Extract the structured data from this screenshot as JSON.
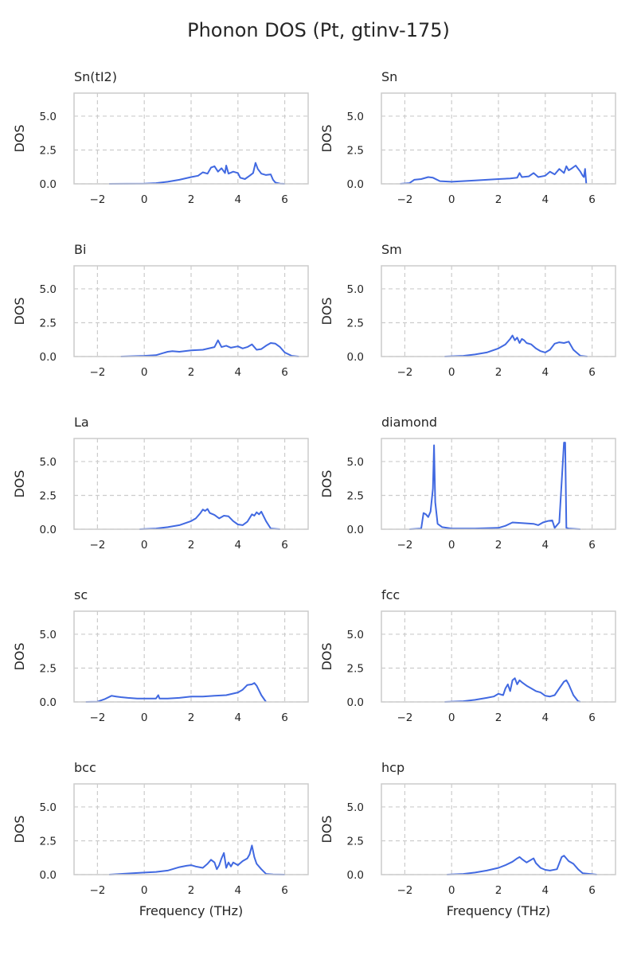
{
  "title": "Phonon DOS (Pt, gtinv-175)",
  "style": {
    "line_color": "#4169e1",
    "grid_color": "#cccccc",
    "spine_color": "#cccccc",
    "text_color": "#262626"
  },
  "chart_data": [
    {
      "type": "line",
      "title": "Sn(tI2)",
      "xlabel": "",
      "ylabel": "DOS",
      "xlim": [
        -3,
        7
      ],
      "ylim": [
        0,
        6.7
      ],
      "xticks": [
        -2,
        0,
        2,
        4,
        6
      ],
      "yticks": [
        0.0,
        2.5,
        5.0
      ],
      "xtick_labels": [
        "−2",
        "0",
        "2",
        "4",
        "6"
      ],
      "ytick_labels": [
        "0.0",
        "2.5",
        "5.0"
      ],
      "grid": "dashed",
      "x": [
        -1.5,
        0,
        0.5,
        1,
        1.5,
        2,
        2.3,
        2.5,
        2.7,
        2.85,
        3.0,
        3.15,
        3.3,
        3.45,
        3.5,
        3.6,
        3.8,
        4.0,
        4.1,
        4.3,
        4.5,
        4.65,
        4.75,
        4.85,
        5.0,
        5.2,
        5.4,
        5.5,
        5.6,
        5.8,
        6.0
      ],
      "y": [
        0,
        0.02,
        0.05,
        0.15,
        0.3,
        0.5,
        0.6,
        0.85,
        0.75,
        1.2,
        1.3,
        0.9,
        1.15,
        0.8,
        1.35,
        0.75,
        0.9,
        0.8,
        0.45,
        0.35,
        0.6,
        0.8,
        1.55,
        1.1,
        0.75,
        0.65,
        0.7,
        0.3,
        0.1,
        0.02,
        0
      ]
    },
    {
      "type": "line",
      "title": "Sn",
      "xlabel": "",
      "ylabel": "DOS",
      "xlim": [
        -3,
        7
      ],
      "ylim": [
        0,
        6.7
      ],
      "xticks": [
        -2,
        0,
        2,
        4,
        6
      ],
      "yticks": [
        0.0,
        2.5,
        5.0
      ],
      "xtick_labels": [
        "−2",
        "0",
        "2",
        "4",
        "6"
      ],
      "ytick_labels": [
        "0.0",
        "2.5",
        "5.0"
      ],
      "grid": "dashed",
      "x": [
        -2.2,
        -1.8,
        -1.6,
        -1.3,
        -1.0,
        -0.8,
        -0.5,
        0,
        1,
        2,
        2.5,
        2.8,
        2.9,
        3.0,
        3.3,
        3.5,
        3.7,
        4.0,
        4.2,
        4.4,
        4.6,
        4.8,
        4.9,
        5.0,
        5.1,
        5.3,
        5.5,
        5.6,
        5.65,
        5.7,
        5.75
      ],
      "y": [
        0,
        0.05,
        0.3,
        0.35,
        0.5,
        0.45,
        0.2,
        0.15,
        0.25,
        0.35,
        0.4,
        0.45,
        0.8,
        0.5,
        0.55,
        0.8,
        0.5,
        0.6,
        0.9,
        0.7,
        1.1,
        0.8,
        1.3,
        1.0,
        1.1,
        1.35,
        0.9,
        0.6,
        0.5,
        1.1,
        0
      ]
    },
    {
      "type": "line",
      "title": "Bi",
      "xlabel": "",
      "ylabel": "DOS",
      "xlim": [
        -3,
        7
      ],
      "ylim": [
        0,
        6.7
      ],
      "xticks": [
        -2,
        0,
        2,
        4,
        6
      ],
      "yticks": [
        0.0,
        2.5,
        5.0
      ],
      "xtick_labels": [
        "−2",
        "0",
        "2",
        "4",
        "6"
      ],
      "ytick_labels": [
        "0.0",
        "2.5",
        "5.0"
      ],
      "grid": "dashed",
      "x": [
        -1.0,
        0,
        0.5,
        0.8,
        1.0,
        1.2,
        1.5,
        2.0,
        2.5,
        3.0,
        3.15,
        3.3,
        3.5,
        3.7,
        4.0,
        4.2,
        4.4,
        4.6,
        4.8,
        5.0,
        5.2,
        5.4,
        5.6,
        5.8,
        6.0,
        6.3,
        6.6
      ],
      "y": [
        0,
        0.05,
        0.1,
        0.25,
        0.35,
        0.4,
        0.35,
        0.45,
        0.5,
        0.7,
        1.2,
        0.7,
        0.8,
        0.65,
        0.75,
        0.6,
        0.7,
        0.9,
        0.5,
        0.55,
        0.8,
        1.0,
        0.95,
        0.7,
        0.3,
        0.05,
        0
      ]
    },
    {
      "type": "line",
      "title": "Sm",
      "xlabel": "",
      "ylabel": "DOS",
      "xlim": [
        -3,
        7
      ],
      "ylim": [
        0,
        6.7
      ],
      "xticks": [
        -2,
        0,
        2,
        4,
        6
      ],
      "yticks": [
        0.0,
        2.5,
        5.0
      ],
      "xtick_labels": [
        "−2",
        "0",
        "2",
        "4",
        "6"
      ],
      "ytick_labels": [
        "0.0",
        "2.5",
        "5.0"
      ],
      "grid": "dashed",
      "x": [
        -0.3,
        0.5,
        1.0,
        1.5,
        2.0,
        2.3,
        2.5,
        2.6,
        2.7,
        2.8,
        2.9,
        3.0,
        3.1,
        3.2,
        3.4,
        3.6,
        3.8,
        4.0,
        4.2,
        4.4,
        4.6,
        4.8,
        5.0,
        5.2,
        5.5,
        5.8
      ],
      "y": [
        0,
        0.05,
        0.15,
        0.3,
        0.6,
        0.9,
        1.3,
        1.55,
        1.2,
        1.4,
        1.0,
        1.3,
        1.2,
        1.0,
        0.9,
        0.6,
        0.4,
        0.3,
        0.5,
        0.95,
        1.05,
        1.0,
        1.1,
        0.5,
        0.05,
        0
      ]
    },
    {
      "type": "line",
      "title": "La",
      "xlabel": "",
      "ylabel": "DOS",
      "xlim": [
        -3,
        7
      ],
      "ylim": [
        0,
        6.7
      ],
      "xticks": [
        -2,
        0,
        2,
        4,
        6
      ],
      "yticks": [
        0.0,
        2.5,
        5.0
      ],
      "xtick_labels": [
        "−2",
        "0",
        "2",
        "4",
        "6"
      ],
      "ytick_labels": [
        "0.0",
        "2.5",
        "5.0"
      ],
      "grid": "dashed",
      "x": [
        -0.2,
        0.5,
        1.0,
        1.5,
        2.0,
        2.2,
        2.4,
        2.5,
        2.6,
        2.7,
        2.8,
        3.0,
        3.2,
        3.4,
        3.6,
        3.8,
        4.0,
        4.2,
        4.4,
        4.6,
        4.7,
        4.8,
        4.9,
        5.0,
        5.2,
        5.4,
        5.8
      ],
      "y": [
        0,
        0.05,
        0.15,
        0.3,
        0.6,
        0.8,
        1.2,
        1.45,
        1.35,
        1.5,
        1.2,
        1.05,
        0.8,
        1.0,
        0.95,
        0.6,
        0.35,
        0.3,
        0.55,
        1.1,
        1.0,
        1.25,
        1.1,
        1.3,
        0.6,
        0.05,
        0
      ]
    },
    {
      "type": "line",
      "title": "diamond",
      "xlabel": "",
      "ylabel": "DOS",
      "xlim": [
        -3,
        7
      ],
      "ylim": [
        0,
        6.7
      ],
      "xticks": [
        -2,
        0,
        2,
        4,
        6
      ],
      "yticks": [
        0.0,
        2.5,
        5.0
      ],
      "xtick_labels": [
        "−2",
        "0",
        "2",
        "4",
        "6"
      ],
      "ytick_labels": [
        "0.0",
        "2.5",
        "5.0"
      ],
      "grid": "dashed",
      "x": [
        -1.8,
        -1.3,
        -1.2,
        -1.1,
        -1.0,
        -0.9,
        -0.8,
        -0.75,
        -0.7,
        -0.6,
        -0.4,
        0,
        1,
        2,
        2.3,
        2.6,
        3,
        3.5,
        3.7,
        3.9,
        4.1,
        4.3,
        4.4,
        4.6,
        4.7,
        4.75,
        4.8,
        4.85,
        4.9,
        5.0,
        5.5
      ],
      "y": [
        0,
        0.05,
        1.2,
        1.1,
        0.9,
        1.3,
        3.0,
        6.2,
        2.0,
        0.4,
        0.15,
        0.05,
        0.05,
        0.1,
        0.25,
        0.5,
        0.45,
        0.4,
        0.3,
        0.5,
        0.6,
        0.65,
        0.1,
        0.5,
        3.5,
        5.0,
        6.4,
        6.4,
        0.1,
        0.05,
        0
      ]
    },
    {
      "type": "line",
      "title": "sc",
      "xlabel": "",
      "ylabel": "DOS",
      "xlim": [
        -3,
        7
      ],
      "ylim": [
        0,
        6.7
      ],
      "xticks": [
        -2,
        0,
        2,
        4,
        6
      ],
      "yticks": [
        0.0,
        2.5,
        5.0
      ],
      "xtick_labels": [
        "−2",
        "0",
        "2",
        "4",
        "6"
      ],
      "ytick_labels": [
        "0.0",
        "2.5",
        "5.0"
      ],
      "grid": "dashed",
      "x": [
        -2.5,
        -2.0,
        -1.7,
        -1.4,
        -1.2,
        -1.0,
        -0.7,
        -0.3,
        0,
        0.5,
        0.6,
        0.65,
        0.7,
        1,
        1.5,
        2,
        2.5,
        3,
        3.5,
        4.0,
        4.2,
        4.4,
        4.6,
        4.7,
        4.8,
        5.0,
        5.2
      ],
      "y": [
        0,
        0.02,
        0.2,
        0.45,
        0.4,
        0.35,
        0.3,
        0.25,
        0.25,
        0.25,
        0.5,
        0.25,
        0.25,
        0.25,
        0.3,
        0.4,
        0.4,
        0.45,
        0.5,
        0.7,
        0.9,
        1.25,
        1.3,
        1.4,
        1.2,
        0.5,
        0
      ]
    },
    {
      "type": "line",
      "title": "fcc",
      "xlabel": "",
      "ylabel": "DOS",
      "xlim": [
        -3,
        7
      ],
      "ylim": [
        0,
        6.7
      ],
      "xticks": [
        -2,
        0,
        2,
        4,
        6
      ],
      "yticks": [
        0.0,
        2.5,
        5.0
      ],
      "xtick_labels": [
        "−2",
        "0",
        "2",
        "4",
        "6"
      ],
      "ytick_labels": [
        "0.0",
        "2.5",
        "5.0"
      ],
      "grid": "dashed",
      "x": [
        -0.3,
        0.5,
        1.0,
        1.5,
        1.8,
        2.0,
        2.2,
        2.3,
        2.4,
        2.5,
        2.6,
        2.7,
        2.8,
        2.9,
        3.0,
        3.2,
        3.4,
        3.6,
        3.8,
        4.0,
        4.2,
        4.4,
        4.6,
        4.8,
        4.9,
        5.0,
        5.2,
        5.4,
        5.5
      ],
      "y": [
        0,
        0.05,
        0.15,
        0.3,
        0.4,
        0.6,
        0.5,
        1.0,
        1.3,
        0.8,
        1.6,
        1.75,
        1.3,
        1.6,
        1.45,
        1.2,
        1.0,
        0.8,
        0.7,
        0.45,
        0.4,
        0.5,
        1.0,
        1.5,
        1.6,
        1.3,
        0.5,
        0.05,
        0
      ]
    },
    {
      "type": "line",
      "title": "bcc",
      "xlabel": "Frequency (THz)",
      "ylabel": "DOS",
      "xlim": [
        -3,
        7
      ],
      "ylim": [
        0,
        6.7
      ],
      "xticks": [
        -2,
        0,
        2,
        4,
        6
      ],
      "yticks": [
        0.0,
        2.5,
        5.0
      ],
      "xtick_labels": [
        "−2",
        "0",
        "2",
        "4",
        "6"
      ],
      "ytick_labels": [
        "0.0",
        "2.5",
        "5.0"
      ],
      "grid": "dashed",
      "x": [
        -1.5,
        -1.0,
        -0.5,
        0,
        0.5,
        1.0,
        1.5,
        1.8,
        2.0,
        2.2,
        2.5,
        2.7,
        2.85,
        3.0,
        3.1,
        3.2,
        3.3,
        3.4,
        3.5,
        3.6,
        3.7,
        3.8,
        4.0,
        4.2,
        4.4,
        4.5,
        4.6,
        4.7,
        4.8,
        5.0,
        5.2,
        5.5,
        6.0
      ],
      "y": [
        0,
        0.05,
        0.1,
        0.15,
        0.2,
        0.3,
        0.55,
        0.65,
        0.7,
        0.6,
        0.5,
        0.8,
        1.1,
        0.9,
        0.4,
        0.7,
        1.2,
        1.6,
        0.5,
        0.9,
        0.6,
        0.9,
        0.7,
        1.0,
        1.2,
        1.5,
        2.15,
        1.3,
        0.8,
        0.4,
        0.05,
        0.02,
        0
      ]
    },
    {
      "type": "line",
      "title": "hcp",
      "xlabel": "Frequency (THz)",
      "ylabel": "DOS",
      "xlim": [
        -3,
        7
      ],
      "ylim": [
        0,
        6.7
      ],
      "xticks": [
        -2,
        0,
        2,
        4,
        6
      ],
      "yticks": [
        0.0,
        2.5,
        5.0
      ],
      "xtick_labels": [
        "−2",
        "0",
        "2",
        "4",
        "6"
      ],
      "ytick_labels": [
        "0.0",
        "2.5",
        "5.0"
      ],
      "grid": "dashed",
      "x": [
        -0.2,
        0.5,
        1.0,
        1.5,
        2.0,
        2.3,
        2.6,
        2.8,
        2.9,
        3.0,
        3.2,
        3.4,
        3.5,
        3.6,
        3.8,
        4.0,
        4.2,
        4.5,
        4.7,
        4.8,
        4.9,
        5.0,
        5.2,
        5.4,
        5.6,
        6.2
      ],
      "y": [
        0,
        0.05,
        0.15,
        0.3,
        0.5,
        0.7,
        0.95,
        1.2,
        1.3,
        1.15,
        0.9,
        1.1,
        1.2,
        0.85,
        0.5,
        0.35,
        0.3,
        0.4,
        1.3,
        1.4,
        1.2,
        1.0,
        0.8,
        0.4,
        0.1,
        0
      ]
    }
  ]
}
